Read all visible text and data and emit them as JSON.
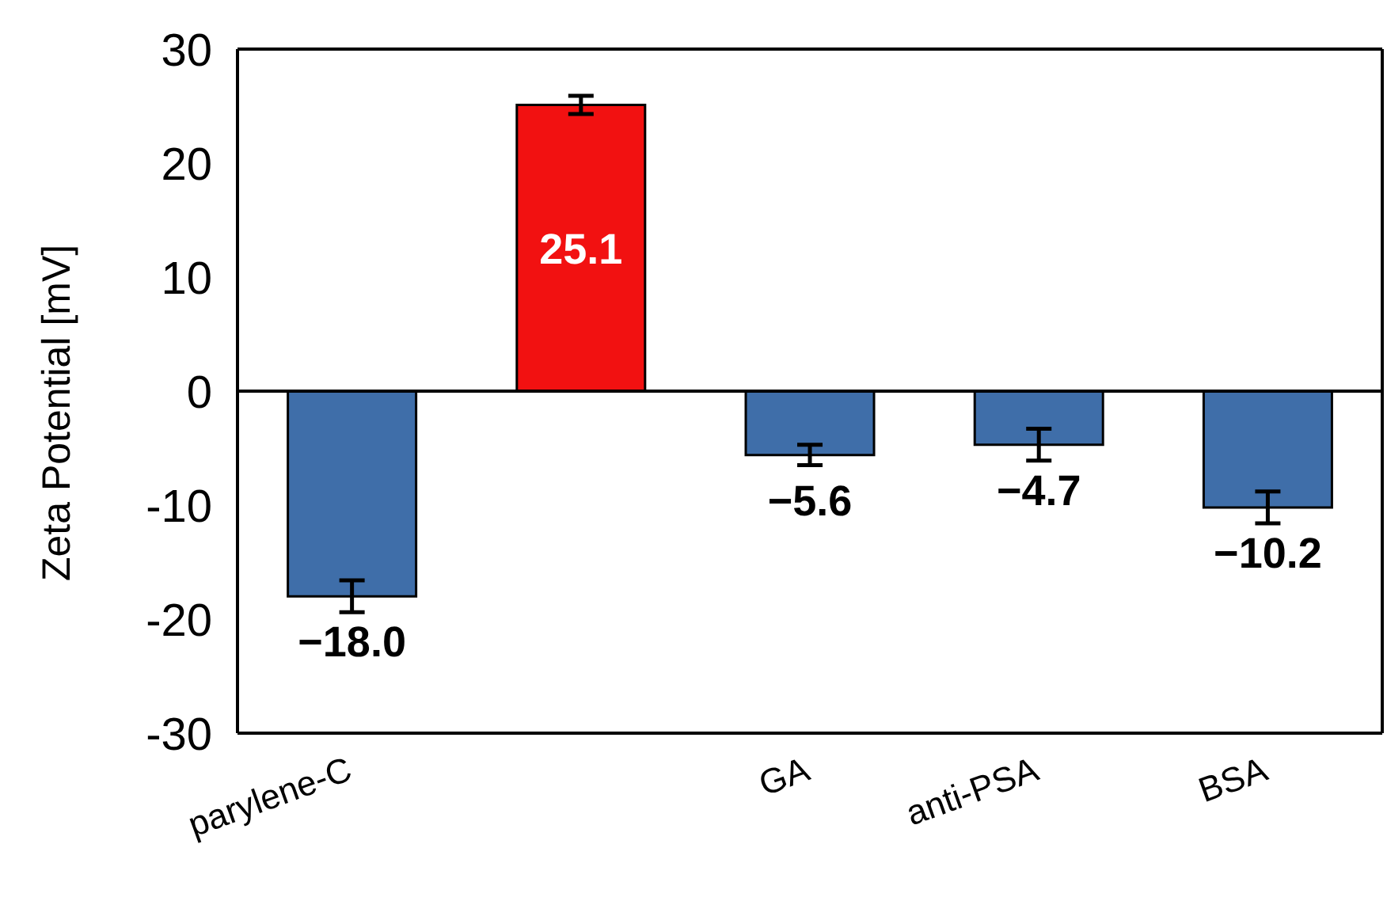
{
  "chart_data": {
    "type": "bar",
    "ylabel": "Zeta Potential [mV]",
    "categories": [
      "parylene-C",
      null,
      "GA",
      "anti-PSA",
      "BSA"
    ],
    "values": [
      -18.0,
      25.1,
      -5.6,
      -4.7,
      -10.2
    ],
    "colors": [
      "#3f6ea9",
      "#f21111",
      "#3f6ea9",
      "#3f6ea9",
      "#3f6ea9"
    ],
    "errors": [
      1.4,
      0.8,
      0.9,
      1.4,
      1.4
    ],
    "value_labels": [
      "−18.0",
      "25.1",
      "−5.6",
      "−4.7",
      "−10.2"
    ],
    "ylim": [
      -30,
      30
    ],
    "yticks": [
      -30,
      -20,
      -10,
      0,
      10,
      20,
      30
    ]
  }
}
